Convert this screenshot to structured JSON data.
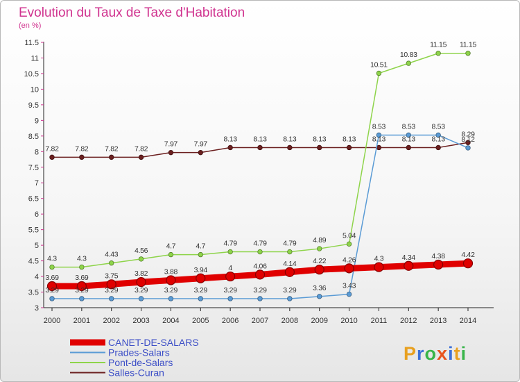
{
  "header": {
    "title": "Evolution du Taux de Taxe d'Habitation",
    "subtitle": "(en %)"
  },
  "brand": {
    "letters": [
      "P",
      "r",
      "o",
      "x",
      "i",
      "t",
      "i"
    ],
    "colors": [
      "#e8a020",
      "#3b6fd8",
      "#39b54a",
      "#e8541e",
      "#3b6fd8",
      "#e8a020",
      "#39b54a"
    ]
  },
  "chart_data": {
    "type": "line",
    "title": "Evolution du Taux de Taxe d'Habitation",
    "subtitle": "(en %)",
    "x": [
      "2000",
      "2001",
      "2002",
      "2003",
      "2004",
      "2005",
      "2006",
      "2007",
      "2008",
      "2009",
      "2010",
      "2011",
      "2012",
      "2013",
      "2014"
    ],
    "ylim": [
      3,
      11.5
    ],
    "yticks": [
      "3",
      "3.5",
      "4",
      "4.5",
      "5",
      "5.5",
      "6",
      "6.5",
      "7",
      "7.5",
      "8",
      "8.5",
      "9",
      "9.5",
      "10",
      "10.5",
      "11",
      "11.5"
    ],
    "grid": false,
    "legend_position": "bottom-left",
    "series": [
      {
        "name": "Salles-Curan",
        "color": "#6b1f1f",
        "width": "thin",
        "values": [
          7.82,
          7.82,
          7.82,
          7.82,
          7.97,
          7.97,
          8.13,
          8.13,
          8.13,
          8.13,
          8.13,
          8.13,
          8.13,
          8.13,
          8.29
        ],
        "labels": [
          "7.82",
          "7.82",
          "7.82",
          "7.82",
          "7.97",
          "7.97",
          "8.13",
          "8.13",
          "8.13",
          "8.13",
          "8.13",
          "8.13",
          "8.13",
          "8.13",
          "8.29"
        ]
      },
      {
        "name": "Prades-Salars",
        "color": "#5a9bd5",
        "width": "thin",
        "values": [
          3.29,
          3.29,
          3.29,
          3.29,
          3.29,
          3.29,
          3.29,
          3.29,
          3.29,
          3.36,
          3.43,
          8.53,
          8.53,
          8.53,
          8.12
        ],
        "labels": [
          "3.29",
          "3.29",
          "3.29",
          "3.29",
          "3.29",
          "3.29",
          "3.29",
          "3.29",
          "3.29",
          "3.36",
          "3.43",
          "8.53",
          "8.53",
          "8.53",
          "8.12"
        ]
      },
      {
        "name": "Pont-de-Salars",
        "color": "#8ed44a",
        "width": "thin",
        "values": [
          4.3,
          4.3,
          4.43,
          4.56,
          4.7,
          4.7,
          4.79,
          4.79,
          4.79,
          4.89,
          5.04,
          10.51,
          10.83,
          11.15,
          11.15
        ],
        "labels": [
          "4.3",
          "4.3",
          "4.43",
          "4.56",
          "4.7",
          "4.7",
          "4.79",
          "4.79",
          "4.79",
          "4.89",
          "5.04",
          "10.51",
          "10.83",
          "11.15",
          "11.15"
        ]
      },
      {
        "name": "CANET-DE-SALARS",
        "color": "#e00000",
        "width": "thick",
        "values": [
          3.69,
          3.69,
          3.75,
          3.82,
          3.88,
          3.94,
          4.0,
          4.06,
          4.14,
          4.22,
          4.26,
          4.3,
          4.34,
          4.38,
          4.42
        ],
        "labels": [
          "3.69",
          "3.69",
          "3.75",
          "3.82",
          "3.88",
          "3.94",
          "4",
          "4.06",
          "4.14",
          "4.22",
          "4.26",
          "4.3",
          "4.34",
          "4.38",
          "4.42"
        ]
      }
    ]
  },
  "legend": [
    {
      "name": "CANET-DE-SALARS",
      "color": "#e00000",
      "width": "thick"
    },
    {
      "name": "Prades-Salars",
      "color": "#5a9bd5",
      "width": "thin"
    },
    {
      "name": "Pont-de-Salars",
      "color": "#8ed44a",
      "width": "thin"
    },
    {
      "name": "Salles-Curan",
      "color": "#6b1f1f",
      "width": "thin"
    }
  ]
}
